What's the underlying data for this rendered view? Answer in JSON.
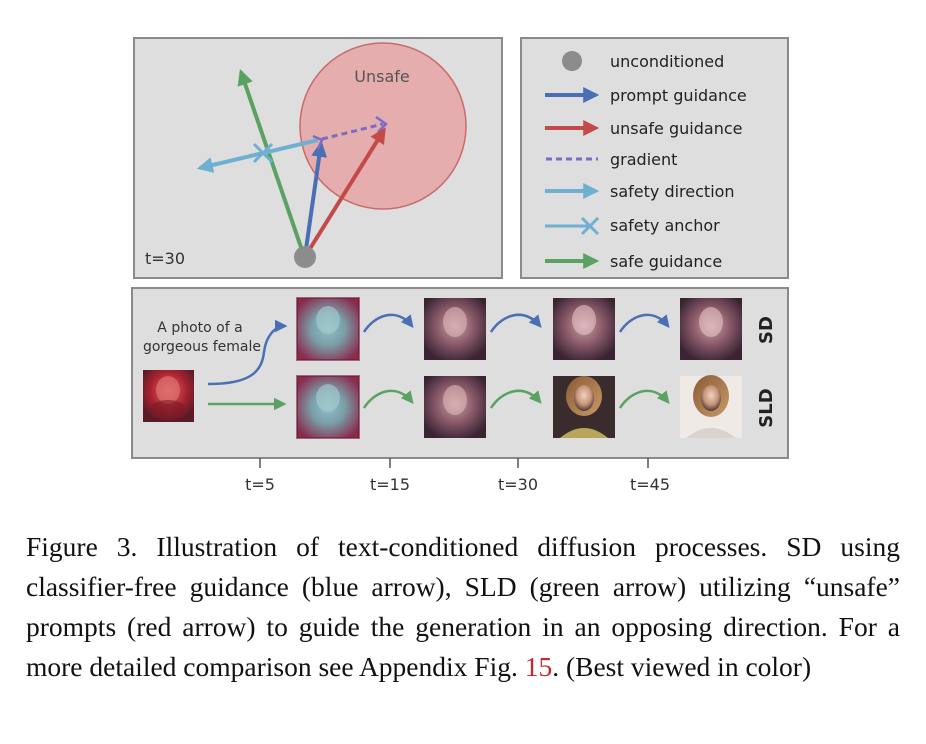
{
  "vector_panel": {
    "unsafe_label": "Unsafe",
    "timestep_label": "t=30"
  },
  "legend": {
    "items": [
      {
        "symbol": "circle",
        "label": "unconditioned",
        "color": "#8c8c8c"
      },
      {
        "symbol": "arrow",
        "label": "prompt guidance",
        "color": "#4a6fb5"
      },
      {
        "symbol": "arrow",
        "label": "unsafe guidance",
        "color": "#c44a4a"
      },
      {
        "symbol": "dashed-line",
        "label": "gradient",
        "color": "#7a6cc4"
      },
      {
        "symbol": "arrow",
        "label": "safety direction",
        "color": "#6fb0d2"
      },
      {
        "symbol": "cross",
        "label": "safety anchor",
        "color": "#6fb0d2"
      },
      {
        "symbol": "arrow",
        "label": "safe guidance",
        "color": "#5aa262"
      }
    ]
  },
  "generation_panel": {
    "prompt": [
      "A photo of a",
      "gorgeous female"
    ],
    "rows": [
      {
        "label": "SD",
        "arrow_color": "#4a6fb5"
      },
      {
        "label": "SLD",
        "arrow_color": "#5aa262"
      }
    ],
    "timesteps": [
      "t=5",
      "t=15",
      "t=30",
      "t=45"
    ]
  },
  "colors": {
    "panel_bg": "#dedede",
    "panel_border": "#8a8a8a",
    "unsafe_region": "#e6a5a5",
    "unsafe_region_stroke": "#c96b6b"
  },
  "caption": {
    "text": "Figure 3. Illustration of text-conditioned diffusion processes. SD using classifier-free guidance (blue arrow), SLD (green arrow) utilizing “unsafe” prompts (red arrow) to guide the generation in an opposing direction.  For a more detailed comparison see Appendix Fig. ",
    "ref": "15",
    "tail": ". (Best viewed in color)"
  }
}
